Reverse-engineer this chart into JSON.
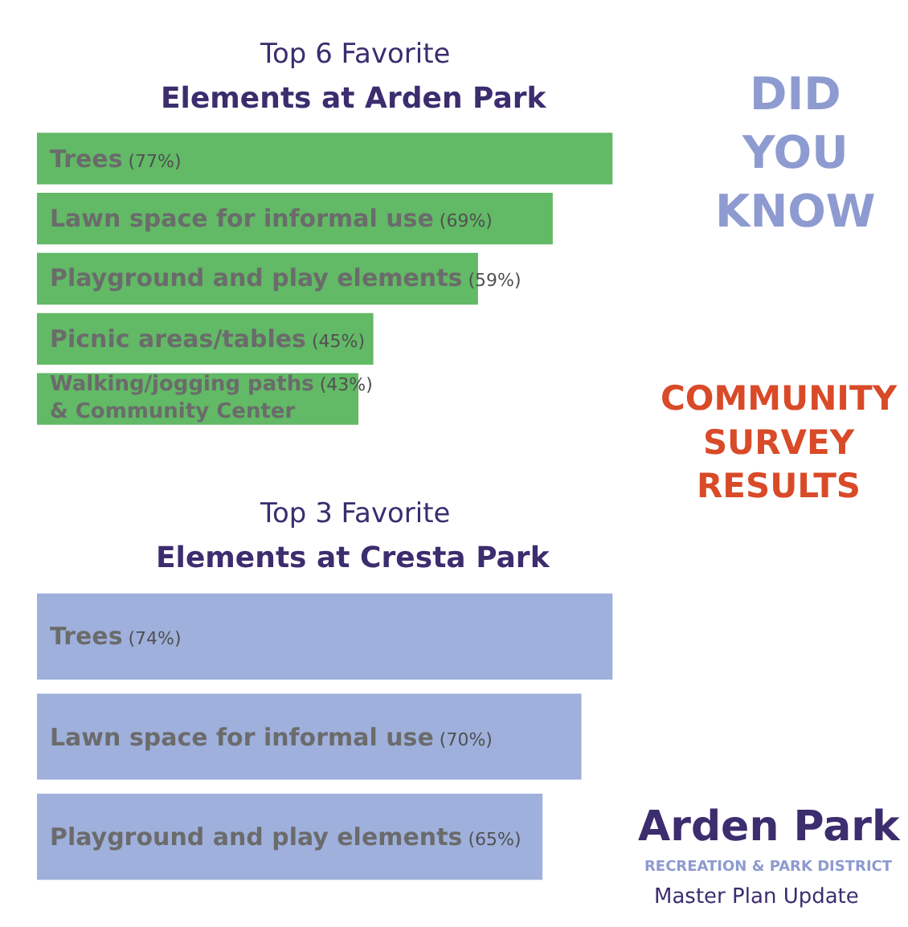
{
  "chart_data": [
    {
      "type": "bar",
      "orientation": "horizontal",
      "title": "Top 6 Favorite\nElements at Arden Park",
      "categories": [
        "Trees",
        "Lawn space for informal use",
        "Playground and play elements",
        "Picnic areas/tables",
        "Walking/jogging paths\n& Community Center"
      ],
      "values": [
        77,
        69,
        59,
        45,
        43
      ],
      "value_labels": [
        "(77%)",
        "(69%)",
        "(59%)",
        "(45%)",
        "(43%)"
      ],
      "color": "#62b966",
      "tick_labels": false,
      "annotations": [
        "DID\nYOU\nKNOW",
        "COMMUNITY\nSURVEY\nRESULTS"
      ]
    },
    {
      "type": "bar",
      "orientation": "horizontal",
      "title": "Top 3 Favorite\nElements at Cresta Park",
      "categories": [
        "Trees",
        "Lawn space for informal use",
        "Playground and play elements"
      ],
      "values": [
        74,
        70,
        65
      ],
      "value_labels": [
        "(74%)",
        "(70%)",
        "(65%)"
      ],
      "color": "#9fb0dc",
      "tick_labels": false,
      "annotations": [
        "Arden Park",
        "RECREATION & PARK DISTRICT",
        "Master Plan Update"
      ]
    }
  ]
}
